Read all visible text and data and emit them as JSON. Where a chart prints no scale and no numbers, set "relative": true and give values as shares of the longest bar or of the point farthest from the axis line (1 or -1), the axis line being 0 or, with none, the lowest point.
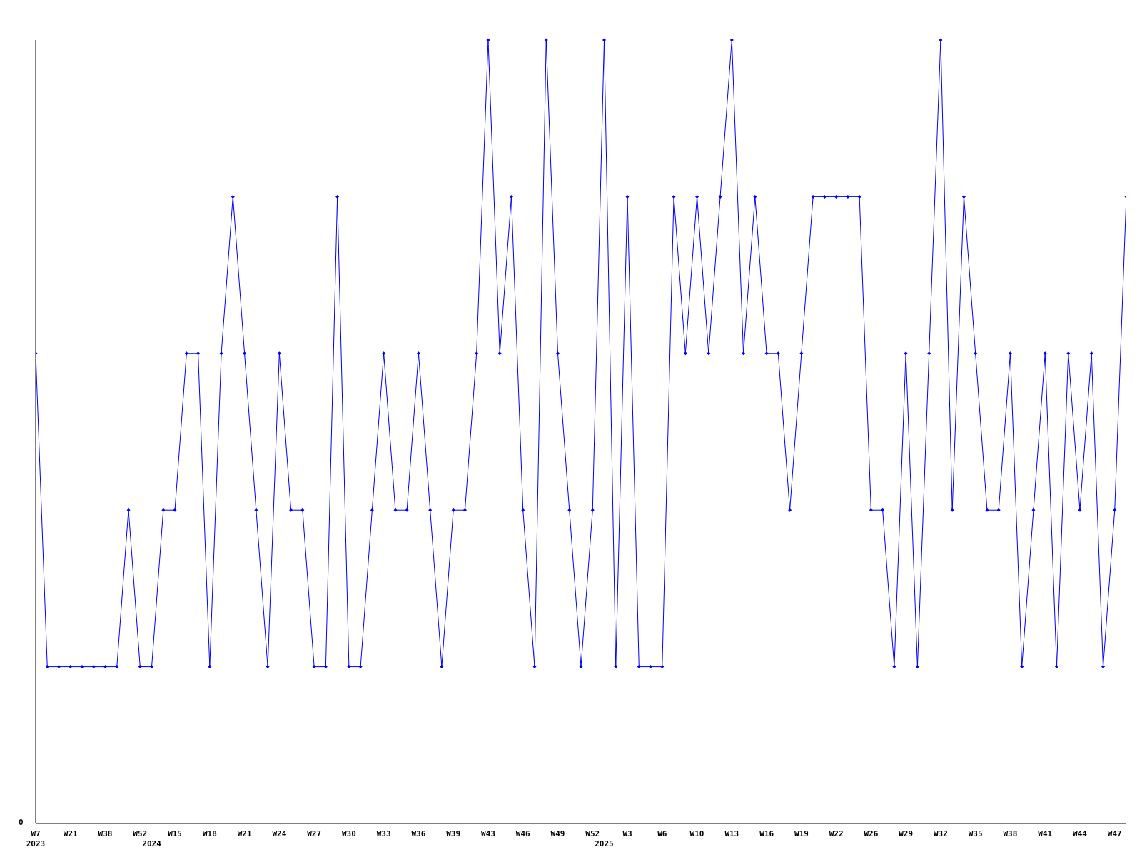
{
  "chart_data": {
    "type": "line",
    "relative": true,
    "categories": [
      "W7\n2023",
      null,
      null,
      "W21",
      null,
      null,
      "W38",
      null,
      null,
      "W52",
      "\n2024",
      null,
      "W15",
      null,
      null,
      "W18",
      null,
      null,
      "W21",
      null,
      null,
      "W24",
      null,
      null,
      "W27",
      null,
      null,
      "W30",
      null,
      null,
      "W33",
      null,
      null,
      "W36",
      null,
      null,
      "W39",
      null,
      null,
      "W43",
      null,
      null,
      "W46",
      null,
      null,
      "W49",
      null,
      null,
      "W52",
      "\n2025",
      null,
      "W3",
      null,
      null,
      "W6",
      null,
      null,
      "W10",
      null,
      null,
      "W13",
      null,
      null,
      "W16",
      null,
      null,
      "W19",
      null,
      null,
      "W22",
      null,
      null,
      "W26",
      null,
      null,
      "W29",
      null,
      null,
      "W32",
      null,
      null,
      "W35",
      null,
      null,
      "W38",
      null,
      null,
      "W41",
      null,
      null,
      "W44",
      null,
      null,
      "W47",
      null
    ],
    "series": [
      {
        "color": "#0000ff",
        "values": [
          0.6,
          0.2,
          0.2,
          0.2,
          0.2,
          0.2,
          0.2,
          0.2,
          0.4,
          0.2,
          0.2,
          0.4,
          0.4,
          0.6,
          0.6,
          0.2,
          0.6,
          0.8,
          0.6,
          0.4,
          0.2,
          0.6,
          0.4,
          0.4,
          0.2,
          0.2,
          0.8,
          0.2,
          0.2,
          0.4,
          0.6,
          0.4,
          0.4,
          0.6,
          0.4,
          0.2,
          0.4,
          0.4,
          0.6,
          1,
          0.6,
          0.8,
          0.4,
          0.2,
          1,
          0.6,
          0.4,
          0.2,
          0.4,
          1,
          0.2,
          0.8,
          0.2,
          0.2,
          0.2,
          0.8,
          0.6,
          0.8,
          0.6,
          0.8,
          1,
          0.6,
          0.8,
          0.6,
          0.6,
          0.4,
          0.6,
          0.8,
          0.8,
          0.8,
          0.8,
          0.8,
          0.4,
          0.4,
          0.2,
          0.6,
          0.2,
          0.6,
          1,
          0.4,
          0.8,
          0.6,
          0.4,
          0.4,
          0.6,
          0.2,
          0.4,
          0.6,
          0.2,
          0.6,
          0.4,
          0.6,
          0.2,
          0.4,
          0.8
        ]
      }
    ],
    "annotations": [
      "0"
    ],
    "marker": "diamond",
    "line_style": "solid",
    "grid": false,
    "legend": false
  }
}
